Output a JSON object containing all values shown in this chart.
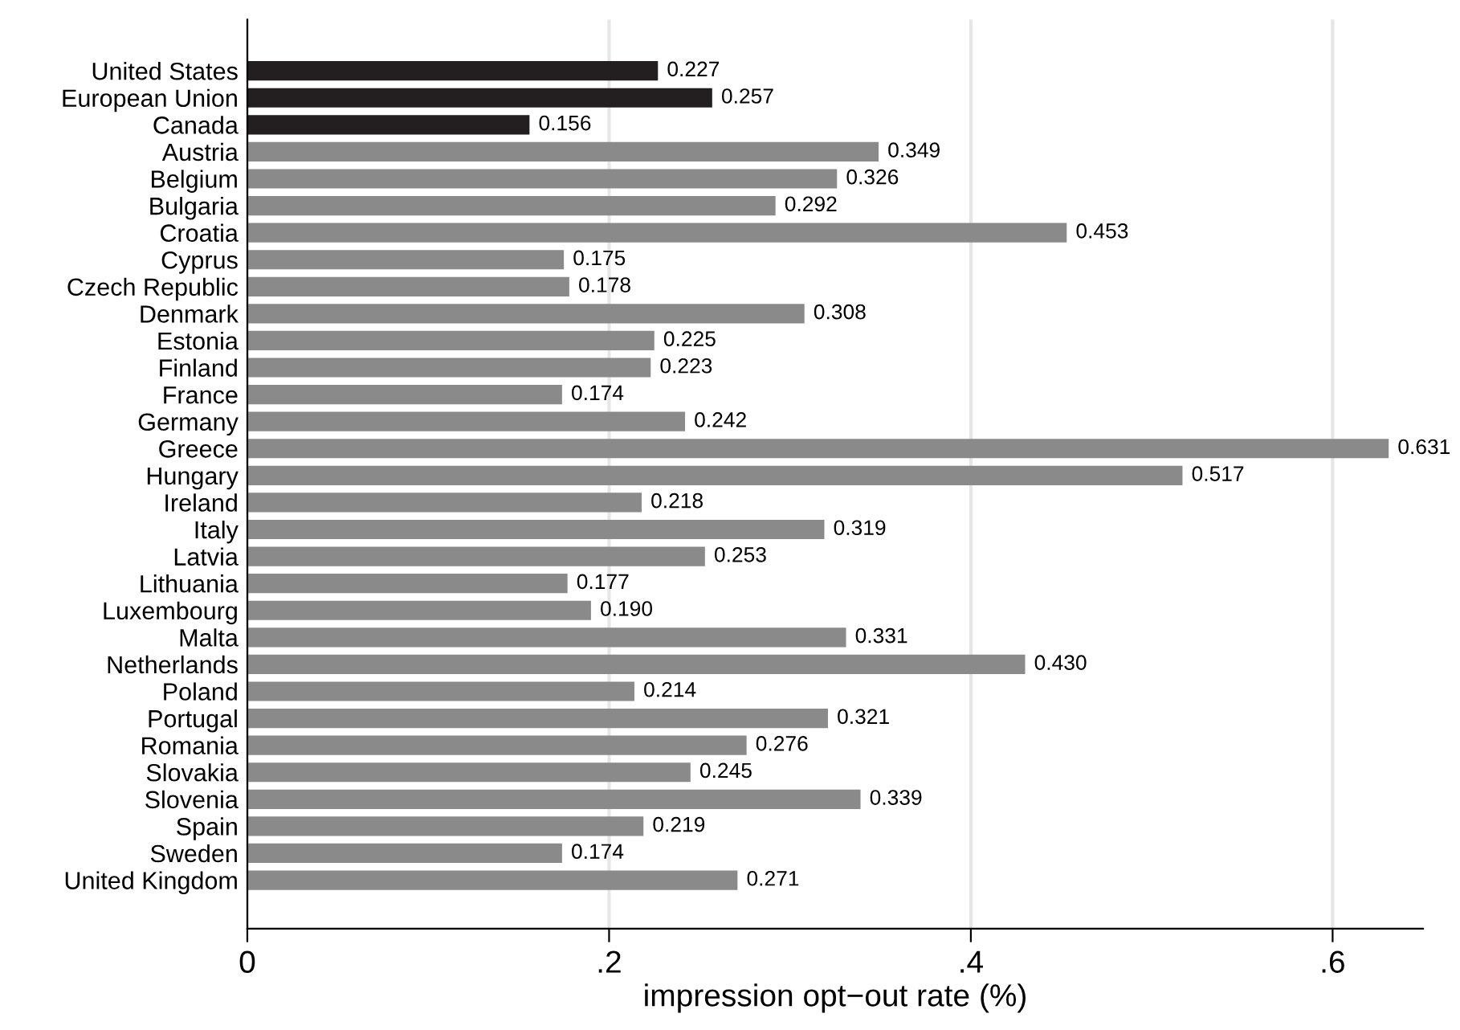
{
  "chart_data": {
    "type": "bar",
    "orientation": "horizontal",
    "xlabel": "impression opt−out rate (%)",
    "categories": [
      "United States",
      "European Union",
      "Canada",
      "Austria",
      "Belgium",
      "Bulgaria",
      "Croatia",
      "Cyprus",
      "Czech Republic",
      "Denmark",
      "Estonia",
      "Finland",
      "France",
      "Germany",
      "Greece",
      "Hungary",
      "Ireland",
      "Italy",
      "Latvia",
      "Lithuania",
      "Luxembourg",
      "Malta",
      "Netherlands",
      "Poland",
      "Portugal",
      "Romania",
      "Slovakia",
      "Slovenia",
      "Spain",
      "Sweden",
      "United Kingdom"
    ],
    "values": [
      0.227,
      0.257,
      0.156,
      0.349,
      0.326,
      0.292,
      0.453,
      0.175,
      0.178,
      0.308,
      0.225,
      0.223,
      0.174,
      0.242,
      0.631,
      0.517,
      0.218,
      0.319,
      0.253,
      0.177,
      0.19,
      0.331,
      0.43,
      0.214,
      0.321,
      0.276,
      0.245,
      0.339,
      0.219,
      0.174,
      0.271
    ],
    "value_labels": [
      "0.227",
      "0.257",
      "0.156",
      "0.349",
      "0.326",
      "0.292",
      "0.453",
      "0.175",
      "0.178",
      "0.308",
      "0.225",
      "0.223",
      "0.174",
      "0.242",
      "0.631",
      "0.517",
      "0.218",
      "0.319",
      "0.253",
      "0.177",
      "0.190",
      "0.331",
      "0.430",
      "0.214",
      "0.321",
      "0.276",
      "0.245",
      "0.339",
      "0.219",
      "0.174",
      "0.271"
    ],
    "colors": [
      "#231f20",
      "#231f20",
      "#231f20",
      "#8a8a8a",
      "#8a8a8a",
      "#8a8a8a",
      "#8a8a8a",
      "#8a8a8a",
      "#8a8a8a",
      "#8a8a8a",
      "#8a8a8a",
      "#8a8a8a",
      "#8a8a8a",
      "#8a8a8a",
      "#8a8a8a",
      "#8a8a8a",
      "#8a8a8a",
      "#8a8a8a",
      "#8a8a8a",
      "#8a8a8a",
      "#8a8a8a",
      "#8a8a8a",
      "#8a8a8a",
      "#8a8a8a",
      "#8a8a8a",
      "#8a8a8a",
      "#8a8a8a",
      "#8a8a8a",
      "#8a8a8a",
      "#8a8a8a",
      "#8a8a8a"
    ],
    "xlim": [
      0,
      0.65
    ],
    "xticks": [
      0,
      {
        "value": 0.2,
        "label": ".2"
      },
      {
        "value": 0.4,
        "label": ".4"
      },
      {
        "value": 0.6,
        "label": ".6"
      }
    ],
    "grid": "x",
    "legend": false
  }
}
